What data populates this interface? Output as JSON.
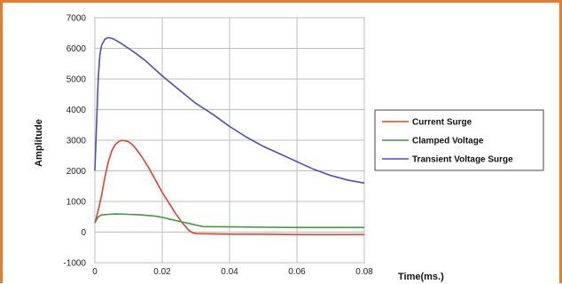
{
  "chart_data": {
    "type": "line",
    "title": "",
    "xlabel": "Time(ms.)",
    "ylabel": "Amplitude",
    "xlim": [
      0,
      0.08
    ],
    "ylim": [
      -1000,
      7000
    ],
    "x_ticks": [
      0,
      0.02,
      0.04,
      0.06,
      0.08
    ],
    "x_tick_labels": [
      "0",
      "0.02",
      "0.04",
      "0.06",
      "0.08"
    ],
    "y_ticks": [
      -1000,
      0,
      1000,
      2000,
      3000,
      4000,
      5000,
      6000,
      7000
    ],
    "y_tick_labels": [
      "-1000",
      "0",
      "1000",
      "2000",
      "3000",
      "4000",
      "5000",
      "6000",
      "7000"
    ],
    "grid": true,
    "legend_position": "right",
    "series": [
      {
        "name": "Current Surge",
        "color": "#e8402a",
        "x": [
          0,
          0.001,
          0.002,
          0.003,
          0.004,
          0.005,
          0.006,
          0.007,
          0.008,
          0.009,
          0.01,
          0.011,
          0.012,
          0.014,
          0.016,
          0.018,
          0.02,
          0.022,
          0.024,
          0.026,
          0.028,
          0.029,
          0.03,
          0.035,
          0.04,
          0.05,
          0.06,
          0.07,
          0.08
        ],
        "y": [
          300,
          700,
          1200,
          1800,
          2300,
          2650,
          2850,
          2950,
          3000,
          2980,
          2950,
          2870,
          2750,
          2450,
          2100,
          1700,
          1300,
          950,
          600,
          300,
          50,
          -20,
          -50,
          -60,
          -70,
          -70,
          -80,
          -80,
          -80
        ]
      },
      {
        "name": "Clamped Voltage",
        "color": "#3f9a3a",
        "x": [
          0,
          0.001,
          0.002,
          0.004,
          0.006,
          0.01,
          0.014,
          0.018,
          0.02,
          0.022,
          0.024,
          0.026,
          0.028,
          0.03,
          0.032,
          0.04,
          0.05,
          0.06,
          0.07,
          0.08
        ],
        "y": [
          300,
          500,
          560,
          580,
          590,
          580,
          560,
          520,
          480,
          430,
          380,
          330,
          280,
          230,
          180,
          170,
          160,
          150,
          150,
          150
        ]
      },
      {
        "name": "Transient Voltage Surge",
        "color": "#4a4fc0",
        "x": [
          0,
          0.0005,
          0.001,
          0.0015,
          0.002,
          0.003,
          0.004,
          0.005,
          0.006,
          0.008,
          0.01,
          0.012,
          0.015,
          0.02,
          0.025,
          0.03,
          0.035,
          0.04,
          0.045,
          0.05,
          0.055,
          0.06,
          0.065,
          0.07,
          0.075,
          0.08
        ],
        "y": [
          2000,
          3500,
          5000,
          5800,
          6100,
          6300,
          6350,
          6330,
          6280,
          6150,
          6000,
          5850,
          5600,
          5100,
          4650,
          4200,
          3850,
          3450,
          3100,
          2800,
          2550,
          2300,
          2050,
          1850,
          1700,
          1600
        ]
      }
    ]
  }
}
